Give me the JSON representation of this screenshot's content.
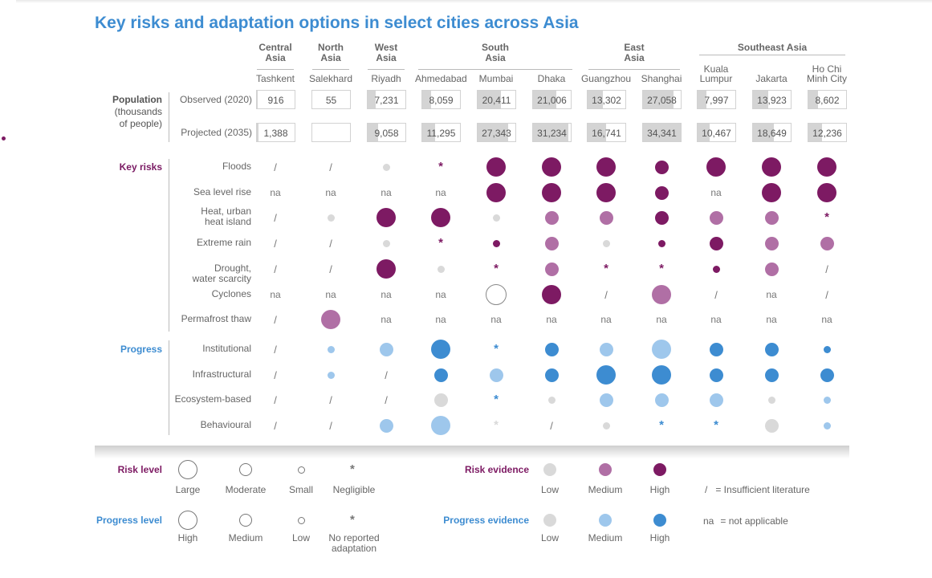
{
  "title": "Key risks and adaptation options in select cities across Asia",
  "colors": {
    "risk_high": "#7d1a63",
    "risk_medium": "#b06fa5",
    "evidence_low": "#d9d9d9",
    "prog_high": "#3d8cd1",
    "prog_medium": "#9ec7ec",
    "title": "#3d8cd1"
  },
  "regions": [
    {
      "name": "Central\nAsia"
    },
    {
      "name": "North\nAsia"
    },
    {
      "name": "West\nAsia"
    },
    {
      "name": "South\nAsia"
    },
    {
      "name": "East\nAsia"
    },
    {
      "name": "Southeast Asia"
    }
  ],
  "cities": [
    "Tashkent",
    "Salekhard",
    "Riyadh",
    "Ahmedabad",
    "Mumbai",
    "Dhaka",
    "Guangzhou",
    "Shanghai",
    "Kuala\nLumpur",
    "Jakarta",
    "Ho Chi\nMinh City"
  ],
  "population": {
    "section_label": "Population\n(thousands\nof people)",
    "rows": [
      {
        "label": "Observed (2020)",
        "values": [
          "916",
          "55",
          "7,231",
          "8,059",
          "20,411",
          "21,006",
          "13,302",
          "27,058",
          "7,997",
          "13,923",
          "8,602"
        ],
        "numbers": [
          916,
          55,
          7231,
          8059,
          20411,
          21006,
          13302,
          27058,
          7997,
          13923,
          8602
        ]
      },
      {
        "label": "Projected (2035)",
        "values": [
          "1,388",
          "",
          "9,058",
          "11,295",
          "27,343",
          "31,234",
          "16,741",
          "34,341",
          "10,467",
          "18,649",
          "12,236"
        ],
        "numbers": [
          1388,
          0,
          9058,
          11295,
          27343,
          31234,
          16741,
          34341,
          10467,
          18649,
          12236
        ]
      }
    ]
  },
  "risks": {
    "section_label": "Key risks",
    "rows": [
      {
        "label": "Floods",
        "cells": [
          "/",
          "/",
          "s-low",
          "n-high",
          "l-high",
          "l-high",
          "l-high",
          "m-high",
          "l-high",
          "l-high",
          "l-high"
        ]
      },
      {
        "label": "Sea level rise",
        "cells": [
          "na",
          "na",
          "na",
          "na",
          "l-high",
          "l-high",
          "l-high",
          "m-high",
          "na",
          "l-high",
          "l-high"
        ]
      },
      {
        "label": "Heat, urban\nheat island",
        "cells": [
          "/",
          "s-low",
          "l-high",
          "l-high",
          "s-low",
          "m-med",
          "m-med",
          "m-high",
          "m-med",
          "m-med",
          "n-high"
        ]
      },
      {
        "label": "Extreme rain",
        "cells": [
          "/",
          "/",
          "s-low",
          "n-high",
          "s-high",
          "m-med",
          "s-low",
          "s-high",
          "m-high",
          "m-med",
          "m-med"
        ]
      },
      {
        "label": "Drought,\nwater scarcity",
        "cells": [
          "/",
          "/",
          "l-high",
          "s-low",
          "n-high",
          "m-med",
          "n-high",
          "n-high",
          "s-high",
          "m-med",
          "/"
        ]
      },
      {
        "label": "Cyclones",
        "cells": [
          "na",
          "na",
          "na",
          "na",
          "l-empty",
          "l-high",
          "/",
          "l-med",
          "/",
          "na",
          "/"
        ]
      },
      {
        "label": "Permafrost thaw",
        "cells": [
          "/",
          "l-med",
          "na",
          "na",
          "na",
          "na",
          "na",
          "na",
          "na",
          "na",
          "na"
        ]
      }
    ]
  },
  "progress": {
    "section_label": "Progress",
    "rows": [
      {
        "label": "Institutional",
        "cells": [
          "/",
          "s-med",
          "m-med",
          "l-high",
          "n-high",
          "m-high",
          "m-med",
          "l-med",
          "m-high",
          "m-high",
          "s-high"
        ]
      },
      {
        "label": "Infrastructural",
        "cells": [
          "/",
          "s-med",
          "/",
          "m-high",
          "m-med",
          "m-high",
          "l-high",
          "l-high",
          "m-high",
          "m-high",
          "m-high"
        ]
      },
      {
        "label": "Ecosystem-based",
        "cells": [
          "/",
          "/",
          "/",
          "m-low",
          "n-high",
          "s-low",
          "m-med",
          "m-med",
          "m-med",
          "s-low",
          "s-med"
        ]
      },
      {
        "label": "Behavioural",
        "cells": [
          "/",
          "/",
          "m-med",
          "l-med",
          "n-low",
          "/",
          "s-low",
          "n-high",
          "n-high",
          "m-low",
          "s-med"
        ]
      }
    ]
  },
  "legend": {
    "risk_level": {
      "title": "Risk level",
      "items": [
        "Large",
        "Moderate",
        "Small",
        "Negligible"
      ]
    },
    "risk_evidence": {
      "title": "Risk evidence",
      "items": [
        "Low",
        "Medium",
        "High"
      ]
    },
    "progress_level": {
      "title": "Progress level",
      "items": [
        "High",
        "Medium",
        "Low",
        "No reported\nadaptation"
      ]
    },
    "progress_evidence": {
      "title": "Progress evidence",
      "items": [
        "Low",
        "Medium",
        "High"
      ]
    },
    "insufficient": {
      "symbol": "/",
      "text": "= Insufficient literature"
    },
    "not_applicable": {
      "symbol": "na",
      "text": "= not applicable"
    }
  }
}
